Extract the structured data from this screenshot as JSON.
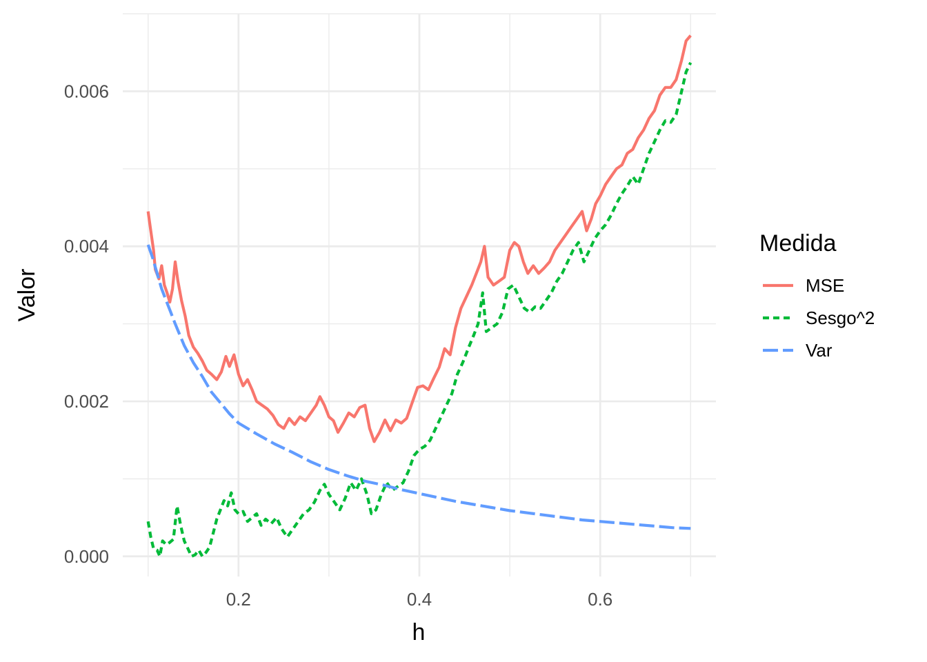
{
  "chart_data": {
    "type": "line",
    "xlabel": "h",
    "ylabel": "Valor",
    "xlim": [
      0.072,
      0.728
    ],
    "ylim": [
      -0.00026,
      0.007
    ],
    "x_ticks": [
      {
        "value": 0.2,
        "label": "0.2"
      },
      {
        "value": 0.4,
        "label": "0.4"
      },
      {
        "value": 0.6,
        "label": "0.6"
      }
    ],
    "x_minor": [
      0.1,
      0.3,
      0.5,
      0.7
    ],
    "y_ticks": [
      {
        "value": 0.0,
        "label": "0.000"
      },
      {
        "value": 0.002,
        "label": "0.002"
      },
      {
        "value": 0.004,
        "label": "0.004"
      },
      {
        "value": 0.006,
        "label": "0.006"
      }
    ],
    "y_minor": [
      0.001,
      0.003,
      0.005,
      0.007
    ],
    "grid": true,
    "legend": {
      "title": "Medida",
      "position": "right"
    },
    "series": [
      {
        "name": "MSE",
        "color": "#F8766D",
        "dash": "solid",
        "points": [
          [
            0.1,
            0.00445
          ],
          [
            0.103,
            0.0042
          ],
          [
            0.106,
            0.00395
          ],
          [
            0.108,
            0.0037
          ],
          [
            0.112,
            0.00358
          ],
          [
            0.115,
            0.00375
          ],
          [
            0.118,
            0.0035
          ],
          [
            0.121,
            0.0034
          ],
          [
            0.124,
            0.00328
          ],
          [
            0.127,
            0.00345
          ],
          [
            0.13,
            0.0038
          ],
          [
            0.133,
            0.00355
          ],
          [
            0.137,
            0.0033
          ],
          [
            0.141,
            0.0031
          ],
          [
            0.145,
            0.00285
          ],
          [
            0.15,
            0.0027
          ],
          [
            0.155,
            0.00262
          ],
          [
            0.16,
            0.00252
          ],
          [
            0.165,
            0.0024
          ],
          [
            0.17,
            0.00235
          ],
          [
            0.176,
            0.00228
          ],
          [
            0.181,
            0.00238
          ],
          [
            0.186,
            0.00258
          ],
          [
            0.19,
            0.00245
          ],
          [
            0.195,
            0.0026
          ],
          [
            0.2,
            0.00235
          ],
          [
            0.205,
            0.0022
          ],
          [
            0.21,
            0.00228
          ],
          [
            0.215,
            0.00215
          ],
          [
            0.22,
            0.002
          ],
          [
            0.226,
            0.00195
          ],
          [
            0.232,
            0.0019
          ],
          [
            0.238,
            0.00182
          ],
          [
            0.244,
            0.0017
          ],
          [
            0.25,
            0.00165
          ],
          [
            0.256,
            0.00178
          ],
          [
            0.262,
            0.0017
          ],
          [
            0.268,
            0.0018
          ],
          [
            0.274,
            0.00175
          ],
          [
            0.28,
            0.00185
          ],
          [
            0.286,
            0.00195
          ],
          [
            0.29,
            0.00206
          ],
          [
            0.295,
            0.00195
          ],
          [
            0.3,
            0.0018
          ],
          [
            0.305,
            0.00175
          ],
          [
            0.31,
            0.0016
          ],
          [
            0.316,
            0.00172
          ],
          [
            0.322,
            0.00185
          ],
          [
            0.328,
            0.0018
          ],
          [
            0.334,
            0.00192
          ],
          [
            0.34,
            0.00195
          ],
          [
            0.345,
            0.00165
          ],
          [
            0.35,
            0.00148
          ],
          [
            0.356,
            0.0016
          ],
          [
            0.362,
            0.00176
          ],
          [
            0.368,
            0.00162
          ],
          [
            0.374,
            0.00176
          ],
          [
            0.38,
            0.00172
          ],
          [
            0.386,
            0.00178
          ],
          [
            0.392,
            0.00198
          ],
          [
            0.398,
            0.00218
          ],
          [
            0.404,
            0.0022
          ],
          [
            0.41,
            0.00215
          ],
          [
            0.416,
            0.0023
          ],
          [
            0.422,
            0.00244
          ],
          [
            0.428,
            0.00268
          ],
          [
            0.434,
            0.0026
          ],
          [
            0.44,
            0.00295
          ],
          [
            0.446,
            0.0032
          ],
          [
            0.452,
            0.00335
          ],
          [
            0.458,
            0.0035
          ],
          [
            0.463,
            0.00365
          ],
          [
            0.468,
            0.0038
          ],
          [
            0.472,
            0.004
          ],
          [
            0.476,
            0.0036
          ],
          [
            0.482,
            0.0035
          ],
          [
            0.488,
            0.00355
          ],
          [
            0.494,
            0.0036
          ],
          [
            0.5,
            0.00395
          ],
          [
            0.505,
            0.00405
          ],
          [
            0.51,
            0.004
          ],
          [
            0.515,
            0.0038
          ],
          [
            0.52,
            0.00365
          ],
          [
            0.526,
            0.00375
          ],
          [
            0.532,
            0.00365
          ],
          [
            0.538,
            0.00372
          ],
          [
            0.544,
            0.0038
          ],
          [
            0.55,
            0.00395
          ],
          [
            0.556,
            0.00405
          ],
          [
            0.562,
            0.00415
          ],
          [
            0.568,
            0.00425
          ],
          [
            0.574,
            0.00435
          ],
          [
            0.58,
            0.00445
          ],
          [
            0.585,
            0.0042
          ],
          [
            0.59,
            0.00435
          ],
          [
            0.595,
            0.00455
          ],
          [
            0.6,
            0.00465
          ],
          [
            0.606,
            0.0048
          ],
          [
            0.612,
            0.0049
          ],
          [
            0.618,
            0.005
          ],
          [
            0.624,
            0.00505
          ],
          [
            0.63,
            0.0052
          ],
          [
            0.636,
            0.00525
          ],
          [
            0.642,
            0.0054
          ],
          [
            0.648,
            0.0055
          ],
          [
            0.654,
            0.00565
          ],
          [
            0.66,
            0.00575
          ],
          [
            0.666,
            0.00595
          ],
          [
            0.672,
            0.00605
          ],
          [
            0.678,
            0.00605
          ],
          [
            0.684,
            0.00615
          ],
          [
            0.69,
            0.0064
          ],
          [
            0.695,
            0.00665
          ],
          [
            0.7,
            0.00672
          ]
        ]
      },
      {
        "name": "Sesgo^2",
        "color": "#00BA38",
        "dash": "short",
        "points": [
          [
            0.1,
            0.00045
          ],
          [
            0.103,
            0.00025
          ],
          [
            0.106,
            0.0001
          ],
          [
            0.11,
            8e-05
          ],
          [
            0.113,
            0.0
          ],
          [
            0.116,
            0.0002
          ],
          [
            0.12,
            0.00015
          ],
          [
            0.124,
            0.00018
          ],
          [
            0.128,
            0.00022
          ],
          [
            0.132,
            0.00065
          ],
          [
            0.136,
            0.0004
          ],
          [
            0.14,
            0.0002
          ],
          [
            0.144,
            0.0001
          ],
          [
            0.148,
            0.0
          ],
          [
            0.152,
            2e-05
          ],
          [
            0.156,
            8e-05
          ],
          [
            0.16,
            0.0
          ],
          [
            0.164,
            5e-05
          ],
          [
            0.168,
            0.00012
          ],
          [
            0.172,
            0.0003
          ],
          [
            0.176,
            0.00048
          ],
          [
            0.18,
            0.0006
          ],
          [
            0.184,
            0.00072
          ],
          [
            0.188,
            0.00065
          ],
          [
            0.192,
            0.00082
          ],
          [
            0.196,
            0.0006
          ],
          [
            0.2,
            0.00055
          ],
          [
            0.205,
            0.00058
          ],
          [
            0.21,
            0.00045
          ],
          [
            0.215,
            0.0005
          ],
          [
            0.22,
            0.00055
          ],
          [
            0.225,
            0.0004
          ],
          [
            0.23,
            0.00048
          ],
          [
            0.236,
            0.00042
          ],
          [
            0.242,
            0.0005
          ],
          [
            0.248,
            0.00035
          ],
          [
            0.254,
            0.00025
          ],
          [
            0.26,
            0.00035
          ],
          [
            0.266,
            0.00045
          ],
          [
            0.272,
            0.00055
          ],
          [
            0.278,
            0.0006
          ],
          [
            0.284,
            0.0007
          ],
          [
            0.29,
            0.00085
          ],
          [
            0.295,
            0.00093
          ],
          [
            0.3,
            0.0008
          ],
          [
            0.306,
            0.0007
          ],
          [
            0.312,
            0.0006
          ],
          [
            0.318,
            0.00075
          ],
          [
            0.324,
            0.00095
          ],
          [
            0.33,
            0.00085
          ],
          [
            0.336,
            0.001
          ],
          [
            0.342,
            0.0008
          ],
          [
            0.347,
            0.00055
          ],
          [
            0.352,
            0.0006
          ],
          [
            0.358,
            0.0008
          ],
          [
            0.364,
            0.00095
          ],
          [
            0.37,
            0.00085
          ],
          [
            0.376,
            0.0009
          ],
          [
            0.382,
            0.00095
          ],
          [
            0.388,
            0.0011
          ],
          [
            0.394,
            0.0013
          ],
          [
            0.4,
            0.00138
          ],
          [
            0.406,
            0.00142
          ],
          [
            0.412,
            0.0015
          ],
          [
            0.418,
            0.00165
          ],
          [
            0.424,
            0.0018
          ],
          [
            0.43,
            0.00195
          ],
          [
            0.436,
            0.0021
          ],
          [
            0.442,
            0.00235
          ],
          [
            0.448,
            0.0025
          ],
          [
            0.454,
            0.00268
          ],
          [
            0.46,
            0.00285
          ],
          [
            0.465,
            0.003
          ],
          [
            0.47,
            0.0034
          ],
          [
            0.474,
            0.0029
          ],
          [
            0.48,
            0.00295
          ],
          [
            0.486,
            0.003
          ],
          [
            0.492,
            0.00315
          ],
          [
            0.498,
            0.00345
          ],
          [
            0.504,
            0.0035
          ],
          [
            0.51,
            0.00335
          ],
          [
            0.516,
            0.0032
          ],
          [
            0.522,
            0.00315
          ],
          [
            0.528,
            0.00322
          ],
          [
            0.534,
            0.0032
          ],
          [
            0.54,
            0.0033
          ],
          [
            0.546,
            0.0034
          ],
          [
            0.552,
            0.00355
          ],
          [
            0.558,
            0.00365
          ],
          [
            0.564,
            0.0038
          ],
          [
            0.57,
            0.00395
          ],
          [
            0.576,
            0.00405
          ],
          [
            0.582,
            0.0038
          ],
          [
            0.588,
            0.00395
          ],
          [
            0.594,
            0.0041
          ],
          [
            0.6,
            0.0042
          ],
          [
            0.606,
            0.00428
          ],
          [
            0.612,
            0.0044
          ],
          [
            0.618,
            0.00455
          ],
          [
            0.624,
            0.00468
          ],
          [
            0.63,
            0.00478
          ],
          [
            0.636,
            0.0049
          ],
          [
            0.642,
            0.0048
          ],
          [
            0.648,
            0.005
          ],
          [
            0.654,
            0.0052
          ],
          [
            0.66,
            0.00535
          ],
          [
            0.666,
            0.0055
          ],
          [
            0.672,
            0.00562
          ],
          [
            0.678,
            0.0056
          ],
          [
            0.684,
            0.0057
          ],
          [
            0.69,
            0.006
          ],
          [
            0.695,
            0.00625
          ],
          [
            0.7,
            0.00637
          ]
        ]
      },
      {
        "name": "Var",
        "color": "#619CFF",
        "dash": "long",
        "points": [
          [
            0.1,
            0.00402
          ],
          [
            0.105,
            0.00385
          ],
          [
            0.11,
            0.00365
          ],
          [
            0.115,
            0.00345
          ],
          [
            0.12,
            0.0033
          ],
          [
            0.125,
            0.00315
          ],
          [
            0.13,
            0.003
          ],
          [
            0.14,
            0.00272
          ],
          [
            0.15,
            0.0025
          ],
          [
            0.16,
            0.00232
          ],
          [
            0.17,
            0.00212
          ],
          [
            0.18,
            0.00198
          ],
          [
            0.19,
            0.00184
          ],
          [
            0.2,
            0.00172
          ],
          [
            0.22,
            0.00158
          ],
          [
            0.24,
            0.00145
          ],
          [
            0.26,
            0.00134
          ],
          [
            0.28,
            0.00122
          ],
          [
            0.3,
            0.00112
          ],
          [
            0.32,
            0.00104
          ],
          [
            0.34,
            0.00097
          ],
          [
            0.36,
            0.00092
          ],
          [
            0.38,
            0.00086
          ],
          [
            0.4,
            0.00081
          ],
          [
            0.42,
            0.00076
          ],
          [
            0.44,
            0.00071
          ],
          [
            0.46,
            0.00067
          ],
          [
            0.48,
            0.00063
          ],
          [
            0.5,
            0.00059
          ],
          [
            0.52,
            0.00056
          ],
          [
            0.54,
            0.00053
          ],
          [
            0.56,
            0.0005
          ],
          [
            0.58,
            0.00047
          ],
          [
            0.6,
            0.00045
          ],
          [
            0.62,
            0.00043
          ],
          [
            0.64,
            0.00041
          ],
          [
            0.66,
            0.00039
          ],
          [
            0.68,
            0.00037
          ],
          [
            0.7,
            0.00036
          ]
        ]
      }
    ]
  }
}
